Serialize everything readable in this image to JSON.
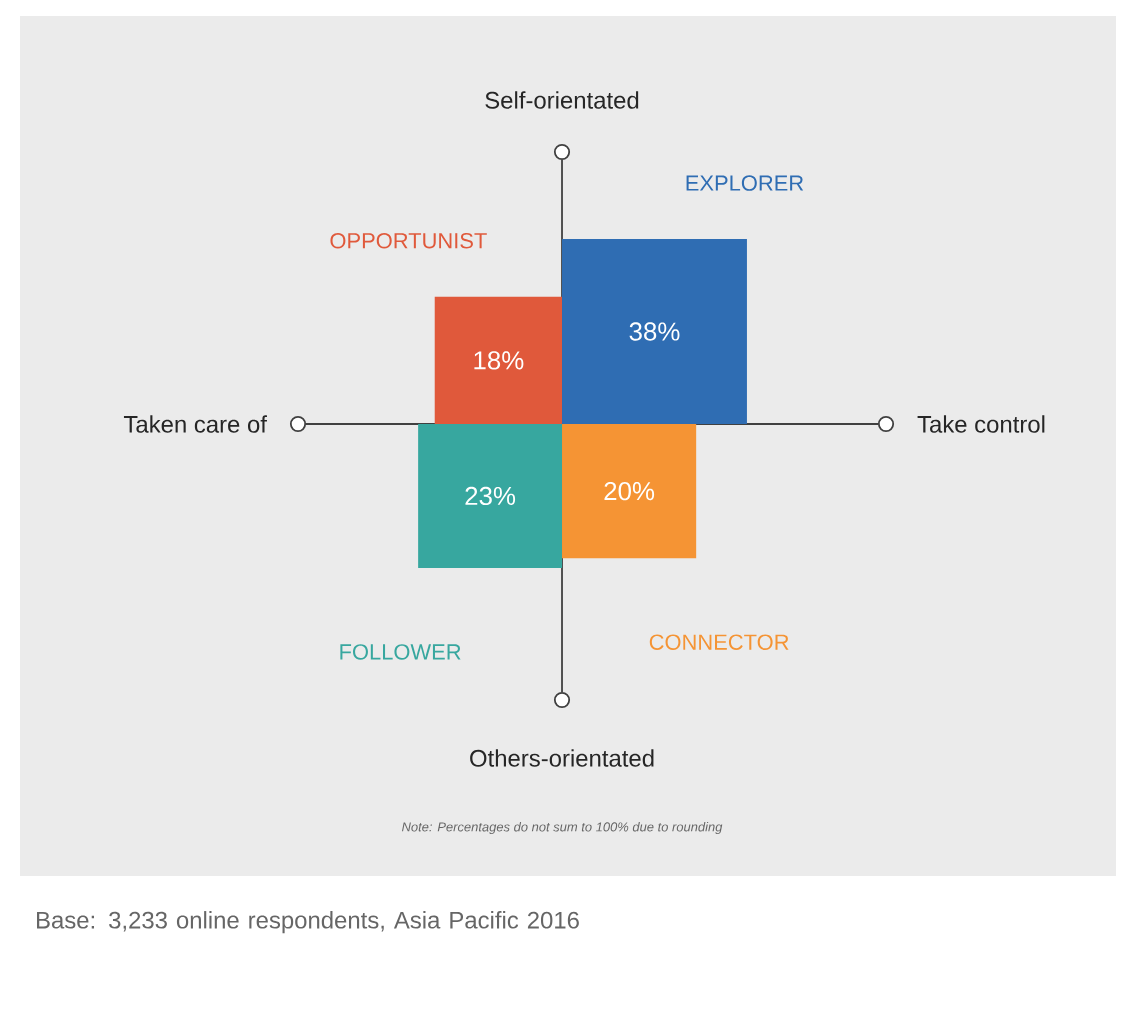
{
  "chart_data": {
    "type": "other",
    "categories": [
      "OPPORTUNIST",
      "EXPLORER",
      "FOLLOWER",
      "CONNECTOR"
    ],
    "values": [
      18,
      38,
      23,
      20
    ],
    "value_labels": [
      "18%",
      "38%",
      "23%",
      "20%"
    ],
    "colors": [
      "#e0593b",
      "#2f6db3",
      "#37a79f",
      "#f59434"
    ],
    "annotations": [
      "Self-orientated",
      "Others-orientated",
      "Taken care of",
      "Take control",
      "Note: Percentages do not sum to 100% due to rounding",
      "Base: 3,233 online respondents, Asia Pacific 2016"
    ]
  }
}
